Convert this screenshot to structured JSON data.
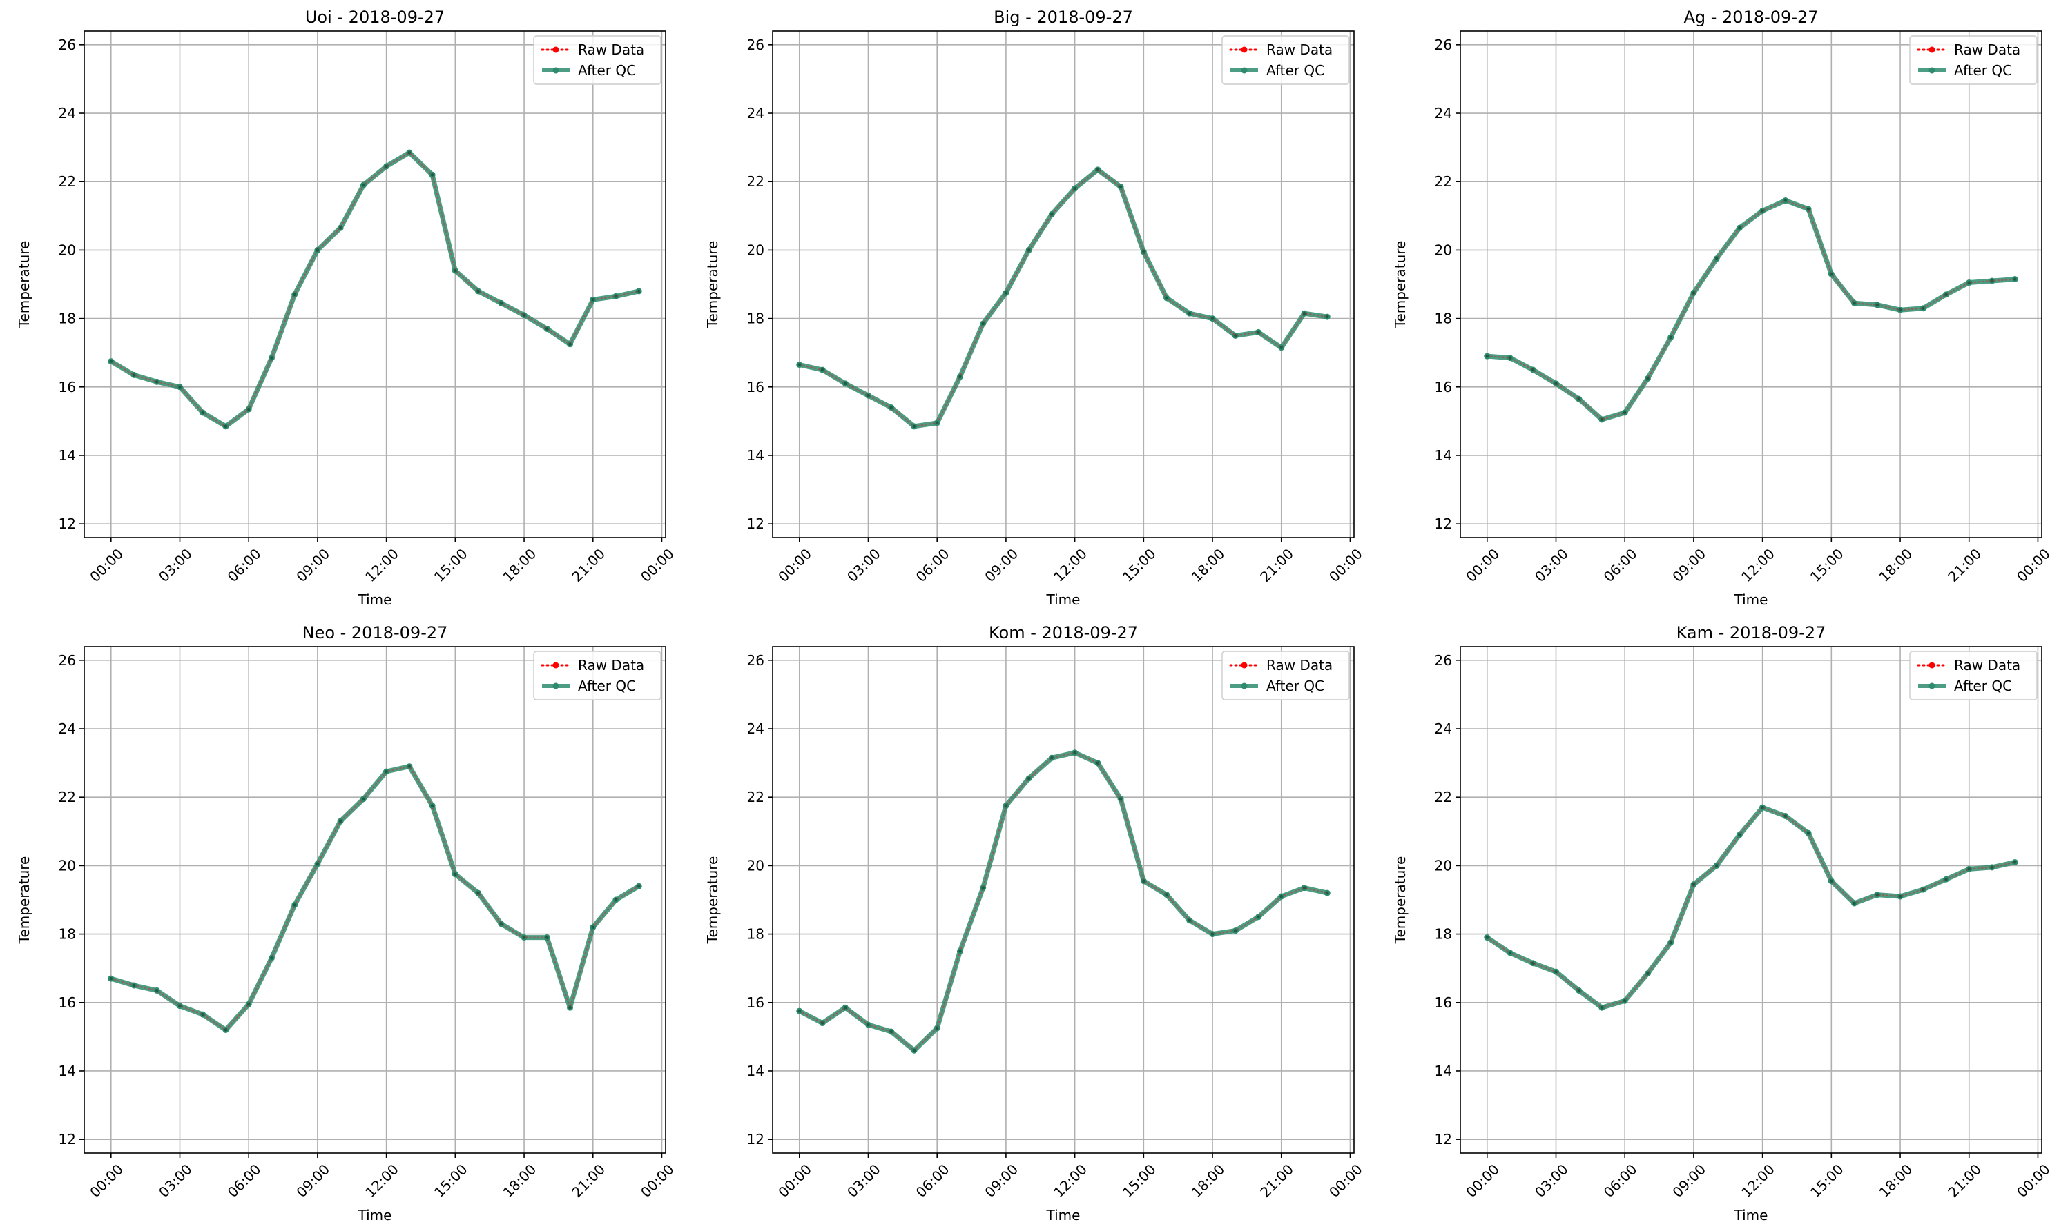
{
  "chart_data": [
    {
      "type": "line",
      "title": "Uoi - 2018-09-27",
      "xlabel": "Time",
      "ylabel": "Temperature",
      "ylim": [
        11.6,
        26.4
      ],
      "xlim": [
        "2018-09-26 22:50",
        "2018-09-28 00:10"
      ],
      "x_tick_labels": [
        "00:00",
        "03:00",
        "06:00",
        "09:00",
        "12:00",
        "15:00",
        "18:00",
        "21:00",
        "00:00"
      ],
      "y_ticks": [
        12,
        14,
        16,
        18,
        20,
        22,
        24,
        26
      ],
      "grid": true,
      "legend_position": "top-right",
      "x": [
        "2018-09-27 00:00",
        "2018-09-27 01:00",
        "2018-09-27 02:00",
        "2018-09-27 03:00",
        "2018-09-27 04:00",
        "2018-09-27 05:00",
        "2018-09-27 06:00",
        "2018-09-27 07:00",
        "2018-09-27 08:00",
        "2018-09-27 09:00",
        "2018-09-27 10:00",
        "2018-09-27 11:00",
        "2018-09-27 12:00",
        "2018-09-27 13:00",
        "2018-09-27 14:00",
        "2018-09-27 15:00",
        "2018-09-27 16:00",
        "2018-09-27 17:00",
        "2018-09-27 18:00",
        "2018-09-27 19:00",
        "2018-09-27 20:00",
        "2018-09-27 21:00",
        "2018-09-27 22:00",
        "2018-09-27 23:00"
      ],
      "series": [
        {
          "name": "Raw Data",
          "color": "#ff0000",
          "style": "dotted",
          "values": [
            16.75,
            16.35,
            16.15,
            16.0,
            15.25,
            14.85,
            15.35,
            16.85,
            18.7,
            20.0,
            20.65,
            21.9,
            22.45,
            22.85,
            22.2,
            19.4,
            18.8,
            18.45,
            18.1,
            17.7,
            17.25,
            18.55,
            18.65,
            18.8
          ]
        },
        {
          "name": "After QC",
          "color": "#2e8b6e",
          "style": "solid",
          "values": [
            16.75,
            16.35,
            16.15,
            16.0,
            15.25,
            14.85,
            15.35,
            16.85,
            18.7,
            20.0,
            20.65,
            21.9,
            22.45,
            22.85,
            22.2,
            19.4,
            18.8,
            18.45,
            18.1,
            17.7,
            17.25,
            18.55,
            18.65,
            18.8
          ]
        }
      ]
    },
    {
      "type": "line",
      "title": "Big - 2018-09-27",
      "xlabel": "Time",
      "ylabel": "Temperature",
      "ylim": [
        11.6,
        26.4
      ],
      "xlim": [
        "2018-09-26 22:50",
        "2018-09-28 00:10"
      ],
      "x_tick_labels": [
        "00:00",
        "03:00",
        "06:00",
        "09:00",
        "12:00",
        "15:00",
        "18:00",
        "21:00",
        "00:00"
      ],
      "y_ticks": [
        12,
        14,
        16,
        18,
        20,
        22,
        24,
        26
      ],
      "grid": true,
      "legend_position": "top-right",
      "x": [
        "2018-09-27 00:00",
        "2018-09-27 01:00",
        "2018-09-27 02:00",
        "2018-09-27 03:00",
        "2018-09-27 04:00",
        "2018-09-27 05:00",
        "2018-09-27 06:00",
        "2018-09-27 07:00",
        "2018-09-27 08:00",
        "2018-09-27 09:00",
        "2018-09-27 10:00",
        "2018-09-27 11:00",
        "2018-09-27 12:00",
        "2018-09-27 13:00",
        "2018-09-27 14:00",
        "2018-09-27 15:00",
        "2018-09-27 16:00",
        "2018-09-27 17:00",
        "2018-09-27 18:00",
        "2018-09-27 19:00",
        "2018-09-27 20:00",
        "2018-09-27 21:00",
        "2018-09-27 22:00",
        "2018-09-27 23:00"
      ],
      "series": [
        {
          "name": "Raw Data",
          "color": "#ff0000",
          "style": "dotted",
          "values": [
            16.65,
            16.5,
            16.1,
            15.75,
            15.4,
            14.85,
            14.95,
            16.3,
            17.85,
            18.75,
            20.0,
            21.05,
            21.8,
            22.35,
            21.85,
            19.95,
            18.6,
            18.15,
            18.0,
            17.5,
            17.6,
            17.15,
            18.15,
            18.05
          ]
        },
        {
          "name": "After QC",
          "color": "#2e8b6e",
          "style": "solid",
          "values": [
            16.65,
            16.5,
            16.1,
            15.75,
            15.4,
            14.85,
            14.95,
            16.3,
            17.85,
            18.75,
            20.0,
            21.05,
            21.8,
            22.35,
            21.85,
            19.95,
            18.6,
            18.15,
            18.0,
            17.5,
            17.6,
            17.15,
            18.15,
            18.05
          ]
        }
      ]
    },
    {
      "type": "line",
      "title": "Ag - 2018-09-27",
      "xlabel": "Time",
      "ylabel": "Temperature",
      "ylim": [
        11.6,
        26.4
      ],
      "xlim": [
        "2018-09-26 22:50",
        "2018-09-28 00:10"
      ],
      "x_tick_labels": [
        "00:00",
        "03:00",
        "06:00",
        "09:00",
        "12:00",
        "15:00",
        "18:00",
        "21:00",
        "00:00"
      ],
      "y_ticks": [
        12,
        14,
        16,
        18,
        20,
        22,
        24,
        26
      ],
      "grid": true,
      "legend_position": "top-right",
      "x": [
        "2018-09-27 00:00",
        "2018-09-27 01:00",
        "2018-09-27 02:00",
        "2018-09-27 03:00",
        "2018-09-27 04:00",
        "2018-09-27 05:00",
        "2018-09-27 06:00",
        "2018-09-27 07:00",
        "2018-09-27 08:00",
        "2018-09-27 09:00",
        "2018-09-27 10:00",
        "2018-09-27 11:00",
        "2018-09-27 12:00",
        "2018-09-27 13:00",
        "2018-09-27 14:00",
        "2018-09-27 15:00",
        "2018-09-27 16:00",
        "2018-09-27 17:00",
        "2018-09-27 18:00",
        "2018-09-27 19:00",
        "2018-09-27 20:00",
        "2018-09-27 21:00",
        "2018-09-27 22:00",
        "2018-09-27 23:00"
      ],
      "series": [
        {
          "name": "Raw Data",
          "color": "#ff0000",
          "style": "dotted",
          "values": [
            16.9,
            16.85,
            16.5,
            16.1,
            15.65,
            15.05,
            15.25,
            16.25,
            17.45,
            18.75,
            19.75,
            20.65,
            21.15,
            21.45,
            21.2,
            19.3,
            18.45,
            18.4,
            18.25,
            18.3,
            18.7,
            19.05,
            19.1,
            19.15
          ]
        },
        {
          "name": "After QC",
          "color": "#2e8b6e",
          "style": "solid",
          "values": [
            16.9,
            16.85,
            16.5,
            16.1,
            15.65,
            15.05,
            15.25,
            16.25,
            17.45,
            18.75,
            19.75,
            20.65,
            21.15,
            21.45,
            21.2,
            19.3,
            18.45,
            18.4,
            18.25,
            18.3,
            18.7,
            19.05,
            19.1,
            19.15
          ]
        }
      ]
    },
    {
      "type": "line",
      "title": "Neo - 2018-09-27",
      "xlabel": "Time",
      "ylabel": "Temperature",
      "ylim": [
        11.6,
        26.4
      ],
      "xlim": [
        "2018-09-26 22:50",
        "2018-09-28 00:10"
      ],
      "x_tick_labels": [
        "00:00",
        "03:00",
        "06:00",
        "09:00",
        "12:00",
        "15:00",
        "18:00",
        "21:00",
        "00:00"
      ],
      "y_ticks": [
        12,
        14,
        16,
        18,
        20,
        22,
        24,
        26
      ],
      "grid": true,
      "legend_position": "top-right",
      "x": [
        "2018-09-27 00:00",
        "2018-09-27 01:00",
        "2018-09-27 02:00",
        "2018-09-27 03:00",
        "2018-09-27 04:00",
        "2018-09-27 05:00",
        "2018-09-27 06:00",
        "2018-09-27 07:00",
        "2018-09-27 08:00",
        "2018-09-27 09:00",
        "2018-09-27 10:00",
        "2018-09-27 11:00",
        "2018-09-27 12:00",
        "2018-09-27 13:00",
        "2018-09-27 14:00",
        "2018-09-27 15:00",
        "2018-09-27 16:00",
        "2018-09-27 17:00",
        "2018-09-27 18:00",
        "2018-09-27 19:00",
        "2018-09-27 20:00",
        "2018-09-27 21:00",
        "2018-09-27 22:00",
        "2018-09-27 23:00"
      ],
      "series": [
        {
          "name": "Raw Data",
          "color": "#ff0000",
          "style": "dotted",
          "values": [
            16.7,
            16.5,
            16.35,
            15.9,
            15.65,
            15.2,
            15.95,
            17.3,
            18.85,
            20.05,
            21.3,
            21.95,
            22.75,
            22.9,
            21.75,
            19.75,
            19.2,
            18.3,
            17.9,
            17.9,
            15.85,
            18.2,
            19.0,
            19.4
          ]
        },
        {
          "name": "After QC",
          "color": "#2e8b6e",
          "style": "solid",
          "values": [
            16.7,
            16.5,
            16.35,
            15.9,
            15.65,
            15.2,
            15.95,
            17.3,
            18.85,
            20.05,
            21.3,
            21.95,
            22.75,
            22.9,
            21.75,
            19.75,
            19.2,
            18.3,
            17.9,
            17.9,
            15.85,
            18.2,
            19.0,
            19.4
          ]
        }
      ]
    },
    {
      "type": "line",
      "title": "Kom - 2018-09-27",
      "xlabel": "Time",
      "ylabel": "Temperature",
      "ylim": [
        11.6,
        26.4
      ],
      "xlim": [
        "2018-09-26 22:50",
        "2018-09-28 00:10"
      ],
      "x_tick_labels": [
        "00:00",
        "03:00",
        "06:00",
        "09:00",
        "12:00",
        "15:00",
        "18:00",
        "21:00",
        "00:00"
      ],
      "y_ticks": [
        12,
        14,
        16,
        18,
        20,
        22,
        24,
        26
      ],
      "grid": true,
      "legend_position": "top-right",
      "x": [
        "2018-09-27 00:00",
        "2018-09-27 01:00",
        "2018-09-27 02:00",
        "2018-09-27 03:00",
        "2018-09-27 04:00",
        "2018-09-27 05:00",
        "2018-09-27 06:00",
        "2018-09-27 07:00",
        "2018-09-27 08:00",
        "2018-09-27 09:00",
        "2018-09-27 10:00",
        "2018-09-27 11:00",
        "2018-09-27 12:00",
        "2018-09-27 13:00",
        "2018-09-27 14:00",
        "2018-09-27 15:00",
        "2018-09-27 16:00",
        "2018-09-27 17:00",
        "2018-09-27 18:00",
        "2018-09-27 19:00",
        "2018-09-27 20:00",
        "2018-09-27 21:00",
        "2018-09-27 22:00",
        "2018-09-27 23:00"
      ],
      "series": [
        {
          "name": "Raw Data",
          "color": "#ff0000",
          "style": "dotted",
          "values": [
            15.75,
            15.4,
            15.85,
            15.35,
            15.15,
            14.6,
            15.25,
            17.5,
            19.35,
            21.75,
            22.55,
            23.15,
            23.3,
            23.0,
            21.95,
            19.55,
            19.15,
            18.4,
            18.0,
            18.1,
            18.5,
            19.1,
            19.35,
            19.2
          ]
        },
        {
          "name": "After QC",
          "color": "#2e8b6e",
          "style": "solid",
          "values": [
            15.75,
            15.4,
            15.85,
            15.35,
            15.15,
            14.6,
            15.25,
            17.5,
            19.35,
            21.75,
            22.55,
            23.15,
            23.3,
            23.0,
            21.95,
            19.55,
            19.15,
            18.4,
            18.0,
            18.1,
            18.5,
            19.1,
            19.35,
            19.2
          ]
        }
      ]
    },
    {
      "type": "line",
      "title": "Kam - 2018-09-27",
      "xlabel": "Time",
      "ylabel": "Temperature",
      "ylim": [
        11.6,
        26.4
      ],
      "xlim": [
        "2018-09-26 22:50",
        "2018-09-28 00:10"
      ],
      "x_tick_labels": [
        "00:00",
        "03:00",
        "06:00",
        "09:00",
        "12:00",
        "15:00",
        "18:00",
        "21:00",
        "00:00"
      ],
      "y_ticks": [
        12,
        14,
        16,
        18,
        20,
        22,
        24,
        26
      ],
      "grid": true,
      "legend_position": "top-right",
      "x": [
        "2018-09-27 00:00",
        "2018-09-27 01:00",
        "2018-09-27 02:00",
        "2018-09-27 03:00",
        "2018-09-27 04:00",
        "2018-09-27 05:00",
        "2018-09-27 06:00",
        "2018-09-27 07:00",
        "2018-09-27 08:00",
        "2018-09-27 09:00",
        "2018-09-27 10:00",
        "2018-09-27 11:00",
        "2018-09-27 12:00",
        "2018-09-27 13:00",
        "2018-09-27 14:00",
        "2018-09-27 15:00",
        "2018-09-27 16:00",
        "2018-09-27 17:00",
        "2018-09-27 18:00",
        "2018-09-27 19:00",
        "2018-09-27 20:00",
        "2018-09-27 21:00",
        "2018-09-27 22:00",
        "2018-09-27 23:00"
      ],
      "series": [
        {
          "name": "Raw Data",
          "color": "#ff0000",
          "style": "dotted",
          "values": [
            17.9,
            17.45,
            17.15,
            16.9,
            16.35,
            15.85,
            16.05,
            16.85,
            17.75,
            19.45,
            20.0,
            20.9,
            21.7,
            21.45,
            20.95,
            19.55,
            18.9,
            19.15,
            19.1,
            19.3,
            19.6,
            19.9,
            19.95,
            20.1
          ]
        },
        {
          "name": "After QC",
          "color": "#2e8b6e",
          "style": "solid",
          "values": [
            17.9,
            17.45,
            17.15,
            16.9,
            16.35,
            15.85,
            16.05,
            16.85,
            17.75,
            19.45,
            20.0,
            20.9,
            21.7,
            21.45,
            20.95,
            19.55,
            18.9,
            19.15,
            19.1,
            19.3,
            19.6,
            19.9,
            19.95,
            20.1
          ]
        }
      ]
    }
  ]
}
